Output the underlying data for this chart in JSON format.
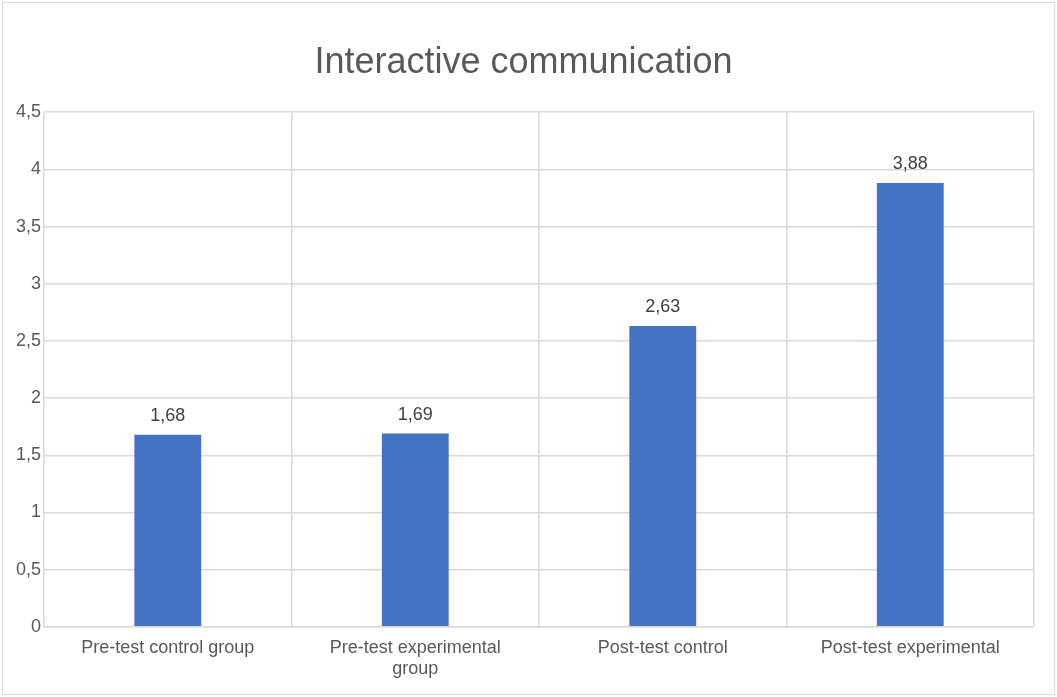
{
  "chart_data": {
    "type": "bar",
    "title": "Interactive communication",
    "categories": [
      "Pre-test control group",
      "Pre-test experimental group",
      "Post-test control",
      "Post-test experimental"
    ],
    "values": [
      1.68,
      1.69,
      2.63,
      3.88
    ],
    "color": "#4472c4",
    "value_labels": [
      "1,68",
      "1,69",
      "2,63",
      "3,88"
    ],
    "ylim": [
      0,
      4.5
    ],
    "yticks": [
      0,
      {
        "value": 0.5,
        "label": "0,5"
      },
      1,
      {
        "value": 1.5,
        "label": "1,5"
      },
      2,
      {
        "value": 2.5,
        "label": "2,5"
      },
      3,
      {
        "value": 3.5,
        "label": "3,5"
      },
      4,
      {
        "value": 4.5,
        "label": "4,5"
      }
    ],
    "grid": true,
    "legend": false
  }
}
